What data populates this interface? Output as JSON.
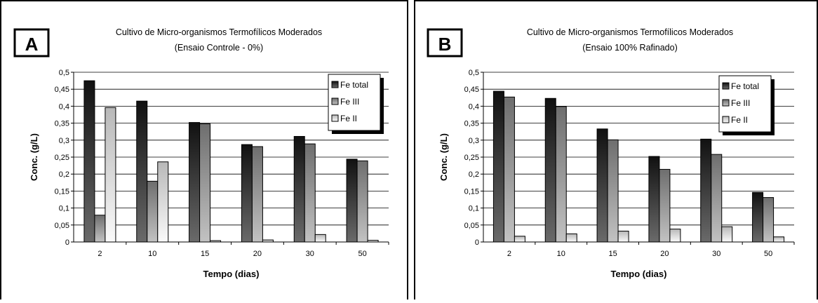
{
  "chart_data": [
    {
      "type": "bar",
      "panel_label": "A",
      "title": "Cultivo de Micro-organismos Termofílicos  Moderados",
      "subtitle": "(Ensaio Controle - 0%)",
      "xlabel": "Tempo (dias)",
      "ylabel": "Conc. (g/L)",
      "ylim": [
        0,
        0.5
      ],
      "yticks": [
        "0",
        "0,05",
        "0,1",
        "0,15",
        "0,2",
        "0,25",
        "0,3",
        "0,35",
        "0,4",
        "0,45",
        "0,5"
      ],
      "categories": [
        "2",
        "10",
        "15",
        "20",
        "30",
        "50"
      ],
      "series": [
        {
          "name": "Fe total",
          "values": [
            0.475,
            0.415,
            0.352,
            0.287,
            0.311,
            0.244
          ]
        },
        {
          "name": "Fe III",
          "values": [
            0.079,
            0.179,
            0.348,
            0.281,
            0.289,
            0.239
          ]
        },
        {
          "name": "Fe II",
          "values": [
            0.396,
            0.236,
            0.004,
            0.006,
            0.022,
            0.005
          ]
        }
      ],
      "grid": true,
      "legend": "top-right"
    },
    {
      "type": "bar",
      "panel_label": "B",
      "title": "Cultivo de Micro-organismos Termofílicos  Moderados",
      "subtitle": "(Ensaio 100% Rafinado)",
      "xlabel": "Tempo (dias)",
      "ylabel": "Conc. (g/L)",
      "ylim": [
        0,
        0.5
      ],
      "yticks": [
        "0",
        "0,05",
        "0,1",
        "0,15",
        "0,2",
        "0,25",
        "0,3",
        "0,35",
        "0,4",
        "0,45",
        "0,5"
      ],
      "categories": [
        "2",
        "10",
        "15",
        "20",
        "30",
        "50"
      ],
      "series": [
        {
          "name": "Fe total",
          "values": [
            0.444,
            0.423,
            0.333,
            0.252,
            0.303,
            0.146
          ]
        },
        {
          "name": "Fe III",
          "values": [
            0.427,
            0.399,
            0.301,
            0.214,
            0.258,
            0.131
          ]
        },
        {
          "name": "Fe II",
          "values": [
            0.017,
            0.024,
            0.032,
            0.038,
            0.045,
            0.015
          ]
        }
      ],
      "grid": true,
      "legend": "top-right"
    }
  ]
}
